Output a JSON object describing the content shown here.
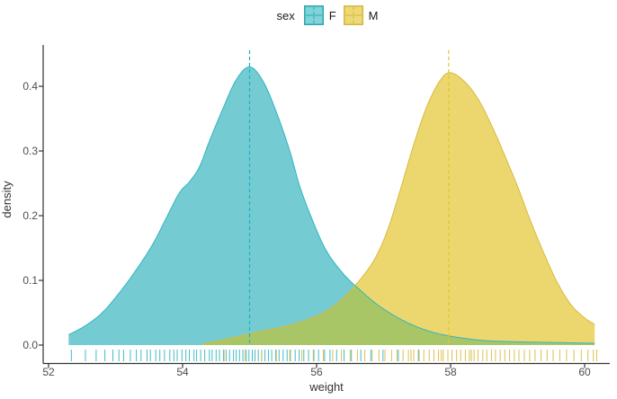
{
  "legend": {
    "title": "sex",
    "items": [
      {
        "label": "F",
        "key_fill": "#7fd3d9",
        "key_line": "#2aa8b4"
      },
      {
        "label": "M",
        "key_fill": "#eed977",
        "key_line": "#d4b73a"
      }
    ]
  },
  "axes": {
    "x": {
      "title": "weight",
      "tick_labels": [
        "52",
        "54",
        "56",
        "58",
        "60"
      ],
      "tick_values": [
        52,
        54,
        56,
        58,
        60
      ],
      "lim": [
        51.9,
        60.35
      ]
    },
    "y": {
      "title": "density",
      "tick_labels": [
        "0.0",
        "0.1",
        "0.2",
        "0.3",
        "0.4"
      ],
      "tick_values": [
        0,
        0.1,
        0.2,
        0.3,
        0.4
      ],
      "lim": [
        0,
        0.464
      ]
    }
  },
  "chart_data": {
    "type": "area",
    "title": "",
    "xlabel": "weight",
    "ylabel": "density",
    "xlim": [
      51.9,
      60.35
    ],
    "ylim": [
      0,
      0.464
    ],
    "grid": false,
    "legend_position": "top",
    "overlap_fill": "#a9c667",
    "axis_color": "#333333",
    "series": [
      {
        "name": "F",
        "fill": "#74ccd2",
        "line": "#2fb5c0",
        "dash_line": "#16b3c2",
        "mean": 55.0,
        "points": [
          [
            52.3,
            0.016
          ],
          [
            52.55,
            0.03
          ],
          [
            52.8,
            0.05
          ],
          [
            53.05,
            0.08
          ],
          [
            53.3,
            0.115
          ],
          [
            53.55,
            0.155
          ],
          [
            53.75,
            0.195
          ],
          [
            53.95,
            0.235
          ],
          [
            54.1,
            0.252
          ],
          [
            54.25,
            0.275
          ],
          [
            54.4,
            0.315
          ],
          [
            54.6,
            0.365
          ],
          [
            54.8,
            0.41
          ],
          [
            55.0,
            0.43
          ],
          [
            55.2,
            0.408
          ],
          [
            55.4,
            0.36
          ],
          [
            55.6,
            0.3
          ],
          [
            55.75,
            0.245
          ],
          [
            55.95,
            0.19
          ],
          [
            56.15,
            0.145
          ],
          [
            56.4,
            0.11
          ],
          [
            56.65,
            0.085
          ],
          [
            56.9,
            0.063
          ],
          [
            57.2,
            0.043
          ],
          [
            57.5,
            0.028
          ],
          [
            57.8,
            0.018
          ],
          [
            58.1,
            0.012
          ],
          [
            58.5,
            0.007
          ],
          [
            59.0,
            0.005
          ],
          [
            59.5,
            0.004
          ],
          [
            60.0,
            0.003
          ],
          [
            60.15,
            0.003
          ]
        ],
        "rug": [
          52.34,
          52.55,
          52.71,
          52.84,
          52.96,
          53.05,
          53.12,
          53.22,
          53.31,
          53.38,
          53.47,
          53.52,
          53.6,
          53.66,
          53.73,
          53.81,
          53.87,
          53.92,
          53.99,
          54.05,
          54.1,
          54.17,
          54.21,
          54.27,
          54.33,
          54.4,
          54.44,
          54.5,
          54.55,
          54.61,
          54.65,
          54.7,
          54.76,
          54.8,
          54.85,
          54.9,
          54.95,
          54.99,
          55.04,
          55.08,
          55.13,
          55.18,
          55.23,
          55.28,
          55.33,
          55.39,
          55.44,
          55.5,
          55.56,
          55.61,
          55.68,
          55.74,
          55.81,
          55.88,
          55.96,
          56.03,
          56.12,
          56.2,
          56.3,
          56.41,
          56.52,
          56.66,
          56.81,
          56.99,
          57.22,
          57.52
        ]
      },
      {
        "name": "M",
        "fill": "#ecd76f",
        "line": "#d9b93c",
        "dash_line": "#e3c433",
        "mean": 57.97,
        "points": [
          [
            54.3,
            0.002
          ],
          [
            54.6,
            0.008
          ],
          [
            54.9,
            0.015
          ],
          [
            55.2,
            0.022
          ],
          [
            55.5,
            0.028
          ],
          [
            55.8,
            0.037
          ],
          [
            56.1,
            0.05
          ],
          [
            56.35,
            0.068
          ],
          [
            56.6,
            0.095
          ],
          [
            56.85,
            0.13
          ],
          [
            57.05,
            0.175
          ],
          [
            57.25,
            0.24
          ],
          [
            57.45,
            0.31
          ],
          [
            57.65,
            0.37
          ],
          [
            57.85,
            0.41
          ],
          [
            58.0,
            0.421
          ],
          [
            58.2,
            0.408
          ],
          [
            58.4,
            0.382
          ],
          [
            58.6,
            0.342
          ],
          [
            58.8,
            0.295
          ],
          [
            59.0,
            0.245
          ],
          [
            59.2,
            0.19
          ],
          [
            59.4,
            0.14
          ],
          [
            59.6,
            0.095
          ],
          [
            59.8,
            0.062
          ],
          [
            60.0,
            0.042
          ],
          [
            60.15,
            0.032
          ]
        ],
        "rug": [
          54.62,
          54.93,
          55.18,
          55.4,
          55.6,
          55.78,
          55.95,
          56.1,
          56.24,
          56.37,
          56.5,
          56.61,
          56.72,
          56.83,
          56.93,
          57.02,
          57.12,
          57.2,
          57.29,
          57.37,
          57.45,
          57.53,
          57.6,
          57.68,
          57.75,
          57.82,
          57.89,
          57.96,
          58.02,
          58.09,
          58.15,
          58.22,
          58.28,
          58.35,
          58.41,
          58.48,
          58.54,
          58.61,
          58.67,
          58.74,
          58.81,
          58.88,
          58.95,
          59.02,
          59.1,
          59.18,
          59.26,
          59.35,
          59.44,
          59.53,
          59.63,
          59.73,
          59.84,
          59.95,
          60.05,
          60.13,
          60.18,
          57.41,
          57.86,
          58.31
        ]
      }
    ]
  }
}
